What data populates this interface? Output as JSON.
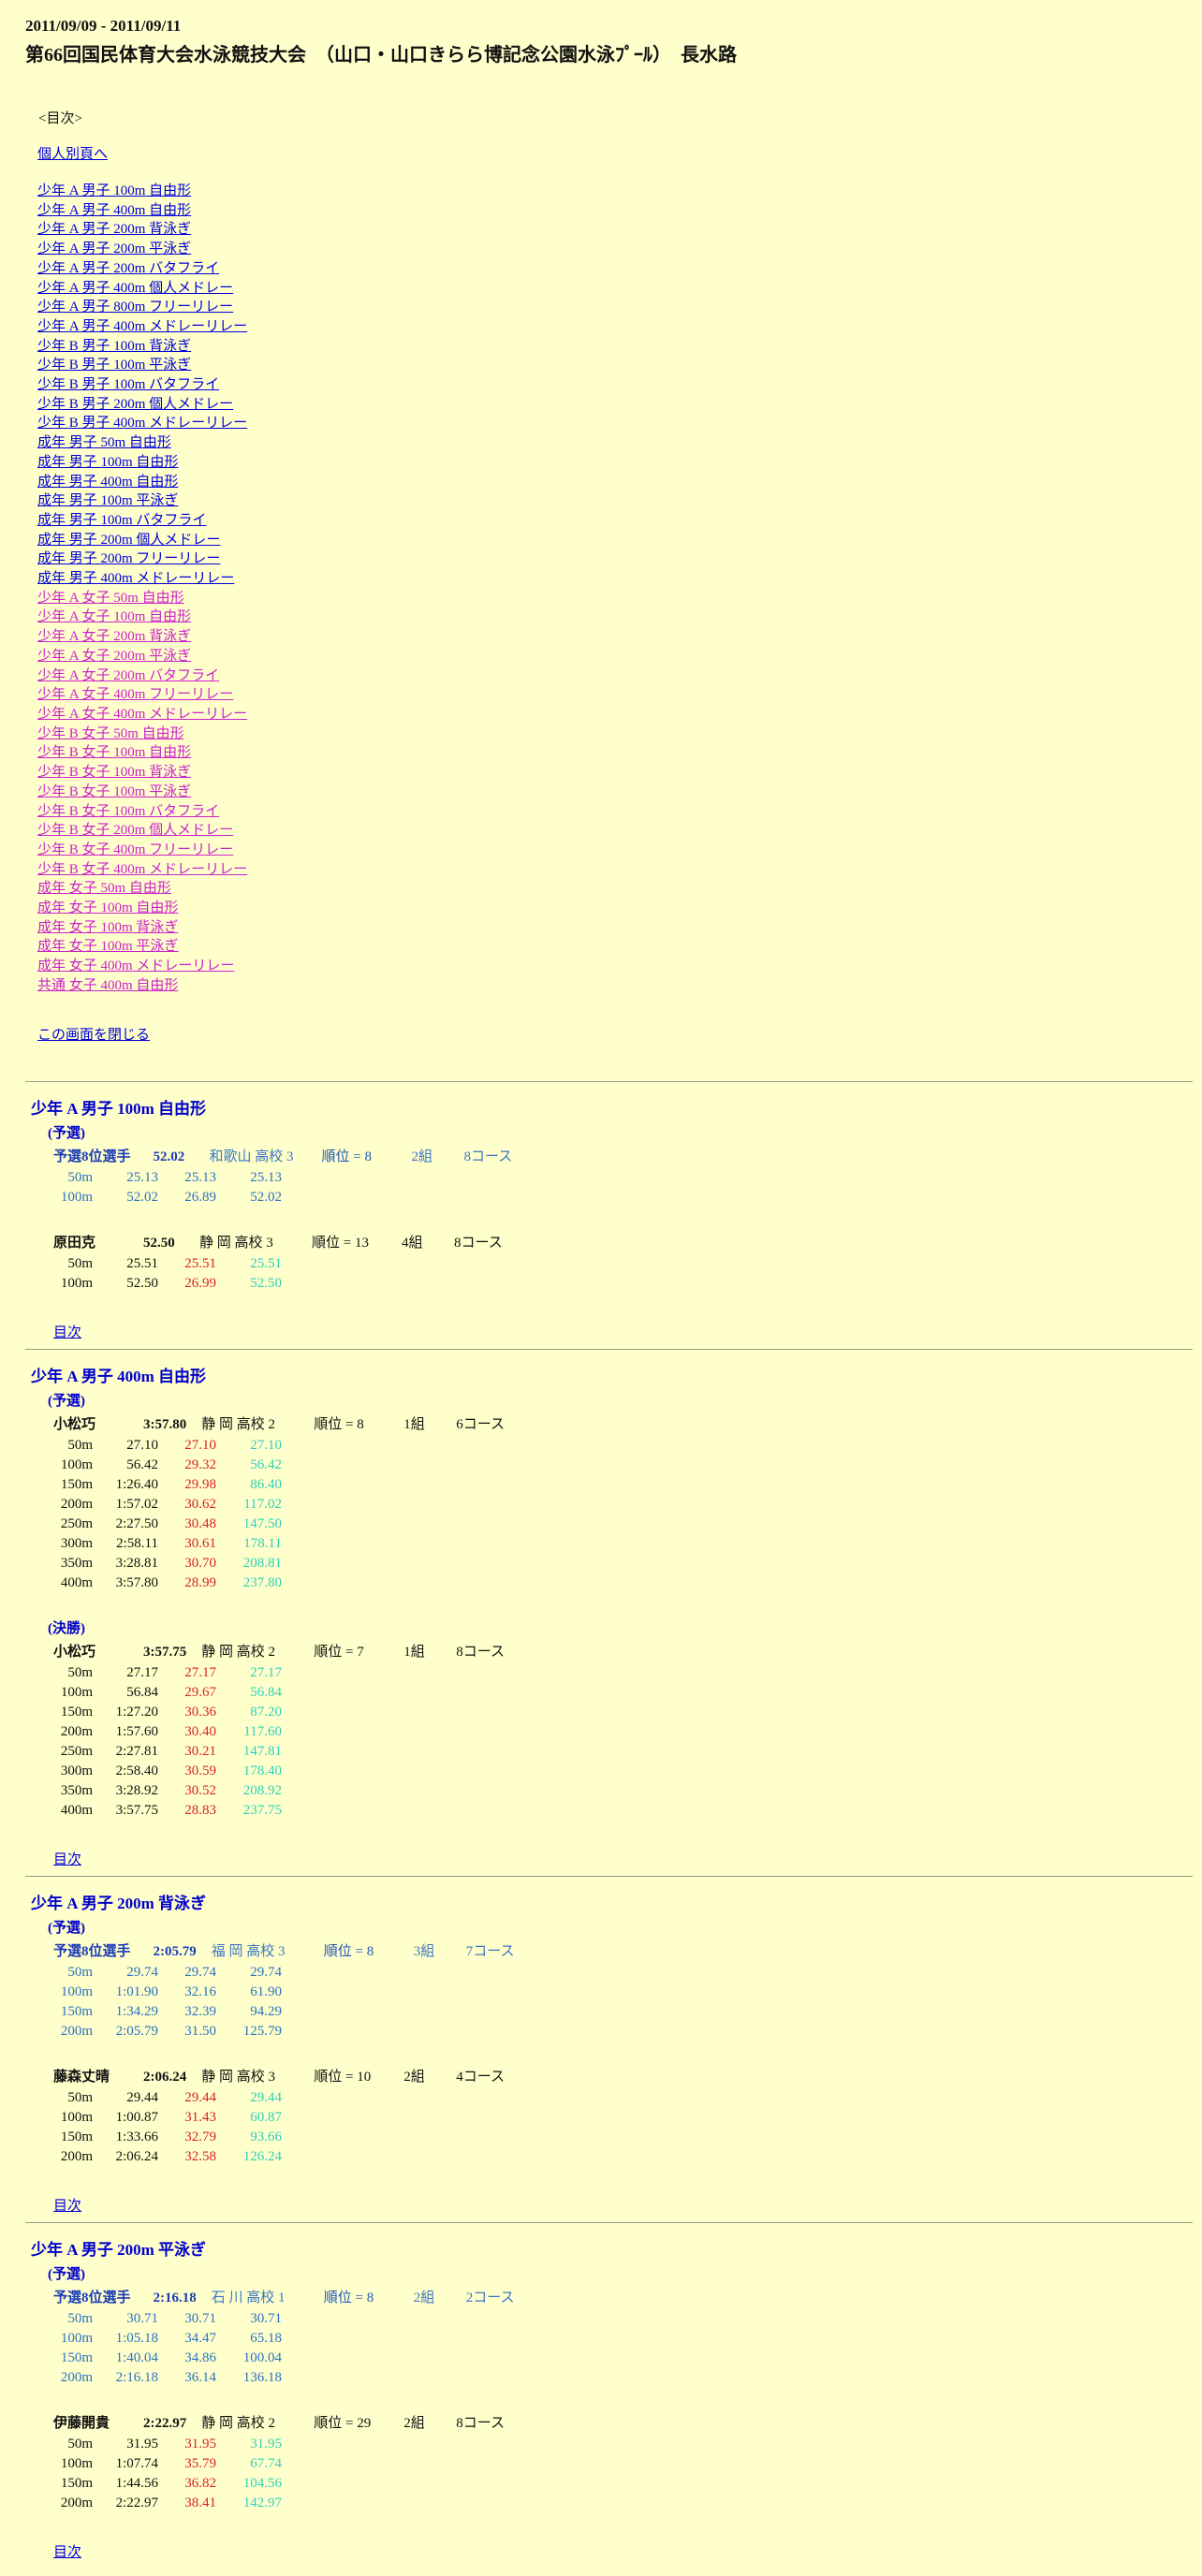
{
  "colors": {
    "background": "#ffffcc",
    "link_blue": "#0000dd",
    "link_visited_magenta": "#cc22cc",
    "section_header_blue": "#0000cc",
    "reference_blue": "#2a72c2",
    "split_red": "#dd2020",
    "cumulative_teal": "#2ed0ba"
  },
  "header": {
    "dates": "2011/09/09 - 2011/09/11",
    "title": "第66回国民体育大会水泳競技大会　（山口・山口きらら博記念公園水泳ﾌﾟｰﾙ）　長水路"
  },
  "toc": {
    "label": "<目次>",
    "top_link": "個人別頁へ",
    "close_link": "この画面を閉じる",
    "links": [
      {
        "label": "少年 A 男子 100m 自由形",
        "visited": false
      },
      {
        "label": "少年 A 男子 400m 自由形",
        "visited": false
      },
      {
        "label": "少年 A 男子 200m 背泳ぎ",
        "visited": false
      },
      {
        "label": "少年 A 男子 200m 平泳ぎ",
        "visited": false
      },
      {
        "label": "少年 A 男子 200m バタフライ",
        "visited": false
      },
      {
        "label": "少年 A 男子 400m 個人メドレー",
        "visited": false
      },
      {
        "label": "少年 A 男子 800m フリーリレー",
        "visited": false
      },
      {
        "label": "少年 A 男子 400m メドレーリレー",
        "visited": false
      },
      {
        "label": "少年 B 男子 100m 背泳ぎ",
        "visited": false
      },
      {
        "label": "少年 B 男子 100m 平泳ぎ",
        "visited": false
      },
      {
        "label": "少年 B 男子 100m バタフライ",
        "visited": false
      },
      {
        "label": "少年 B 男子 200m 個人メドレー",
        "visited": false
      },
      {
        "label": "少年 B 男子 400m メドレーリレー",
        "visited": false
      },
      {
        "label": "成年 男子 50m 自由形",
        "visited": false
      },
      {
        "label": "成年 男子 100m 自由形",
        "visited": false
      },
      {
        "label": "成年 男子 400m 自由形",
        "visited": false
      },
      {
        "label": "成年 男子 100m 平泳ぎ",
        "visited": false
      },
      {
        "label": "成年 男子 100m バタフライ",
        "visited": false
      },
      {
        "label": "成年 男子 200m 個人メドレー",
        "visited": false
      },
      {
        "label": "成年 男子 200m フリーリレー",
        "visited": false
      },
      {
        "label": "成年 男子 400m メドレーリレー",
        "visited": false
      },
      {
        "label": "少年 A 女子 50m 自由形",
        "visited": true
      },
      {
        "label": "少年 A 女子 100m 自由形",
        "visited": true
      },
      {
        "label": "少年 A 女子 200m 背泳ぎ",
        "visited": true
      },
      {
        "label": "少年 A 女子 200m 平泳ぎ",
        "visited": true
      },
      {
        "label": "少年 A 女子 200m バタフライ",
        "visited": true
      },
      {
        "label": "少年 A 女子 400m フリーリレー",
        "visited": true
      },
      {
        "label": "少年 A 女子 400m メドレーリレー",
        "visited": true
      },
      {
        "label": "少年 B 女子 50m 自由形",
        "visited": true
      },
      {
        "label": "少年 B 女子 100m 自由形",
        "visited": true
      },
      {
        "label": "少年 B 女子 100m 背泳ぎ",
        "visited": true
      },
      {
        "label": "少年 B 女子 100m 平泳ぎ",
        "visited": true
      },
      {
        "label": "少年 B 女子 100m バタフライ",
        "visited": true
      },
      {
        "label": "少年 B 女子 200m 個人メドレー",
        "visited": true
      },
      {
        "label": "少年 B 女子 400m フリーリレー",
        "visited": true
      },
      {
        "label": "少年 B 女子 400m メドレーリレー",
        "visited": true
      },
      {
        "label": "成年 女子 50m 自由形",
        "visited": true
      },
      {
        "label": "成年 女子 100m 自由形",
        "visited": true
      },
      {
        "label": "成年 女子 100m 背泳ぎ",
        "visited": true
      },
      {
        "label": "成年 女子 100m 平泳ぎ",
        "visited": true
      },
      {
        "label": "成年 女子 400m メドレーリレー",
        "visited": true
      },
      {
        "label": "共通 女子 400m 自由形",
        "visited": true
      }
    ]
  },
  "back_label": "目次",
  "sections": [
    {
      "title": "少年 A 男子 100m 自由形",
      "rounds": [
        {
          "label": "(予選)",
          "entries": [
            {
              "name": "予選8位選手",
              "time": "52.02",
              "team": "和歌山 高校 3",
              "rank": "順位 = 8",
              "heat": "2組",
              "lane": "8コース",
              "reference": true,
              "laps": [
                [
                  "50m",
                  "25.13",
                  "25.13",
                  "25.13"
                ],
                [
                  "100m",
                  "52.02",
                  "26.89",
                  "52.02"
                ]
              ]
            },
            {
              "name": "原田克",
              "time": "52.50",
              "team": "静 岡 高校 3",
              "rank": "順位 = 13",
              "heat": "4組",
              "lane": "8コース",
              "reference": false,
              "laps": [
                [
                  "50m",
                  "25.51",
                  "25.51",
                  "25.51"
                ],
                [
                  "100m",
                  "52.50",
                  "26.99",
                  "52.50"
                ]
              ]
            }
          ]
        }
      ]
    },
    {
      "title": "少年 A 男子 400m 自由形",
      "rounds": [
        {
          "label": "(予選)",
          "entries": [
            {
              "name": "小松巧",
              "time": "3:57.80",
              "team": "静 岡 高校 2",
              "rank": "順位 = 8",
              "heat": "1組",
              "lane": "6コース",
              "reference": false,
              "laps": [
                [
                  "50m",
                  "27.10",
                  "27.10",
                  "27.10"
                ],
                [
                  "100m",
                  "56.42",
                  "29.32",
                  "56.42"
                ],
                [
                  "150m",
                  "1:26.40",
                  "29.98",
                  "86.40"
                ],
                [
                  "200m",
                  "1:57.02",
                  "30.62",
                  "117.02"
                ],
                [
                  "250m",
                  "2:27.50",
                  "30.48",
                  "147.50"
                ],
                [
                  "300m",
                  "2:58.11",
                  "30.61",
                  "178.11"
                ],
                [
                  "350m",
                  "3:28.81",
                  "30.70",
                  "208.81"
                ],
                [
                  "400m",
                  "3:57.80",
                  "28.99",
                  "237.80"
                ]
              ]
            }
          ]
        },
        {
          "label": "(決勝)",
          "entries": [
            {
              "name": "小松巧",
              "time": "3:57.75",
              "team": "静 岡 高校 2",
              "rank": "順位 = 7",
              "heat": "1組",
              "lane": "8コース",
              "reference": false,
              "laps": [
                [
                  "50m",
                  "27.17",
                  "27.17",
                  "27.17"
                ],
                [
                  "100m",
                  "56.84",
                  "29.67",
                  "56.84"
                ],
                [
                  "150m",
                  "1:27.20",
                  "30.36",
                  "87.20"
                ],
                [
                  "200m",
                  "1:57.60",
                  "30.40",
                  "117.60"
                ],
                [
                  "250m",
                  "2:27.81",
                  "30.21",
                  "147.81"
                ],
                [
                  "300m",
                  "2:58.40",
                  "30.59",
                  "178.40"
                ],
                [
                  "350m",
                  "3:28.92",
                  "30.52",
                  "208.92"
                ],
                [
                  "400m",
                  "3:57.75",
                  "28.83",
                  "237.75"
                ]
              ]
            }
          ]
        }
      ]
    },
    {
      "title": "少年 A 男子 200m 背泳ぎ",
      "rounds": [
        {
          "label": "(予選)",
          "entries": [
            {
              "name": "予選8位選手",
              "time": "2:05.79",
              "team": "福 岡 高校 3",
              "rank": "順位 = 8",
              "heat": "3組",
              "lane": "7コース",
              "reference": true,
              "laps": [
                [
                  "50m",
                  "29.74",
                  "29.74",
                  "29.74"
                ],
                [
                  "100m",
                  "1:01.90",
                  "32.16",
                  "61.90"
                ],
                [
                  "150m",
                  "1:34.29",
                  "32.39",
                  "94.29"
                ],
                [
                  "200m",
                  "2:05.79",
                  "31.50",
                  "125.79"
                ]
              ]
            },
            {
              "name": "藤森丈晴",
              "time": "2:06.24",
              "team": "静 岡 高校 3",
              "rank": "順位 = 10",
              "heat": "2組",
              "lane": "4コース",
              "reference": false,
              "laps": [
                [
                  "50m",
                  "29.44",
                  "29.44",
                  "29.44"
                ],
                [
                  "100m",
                  "1:00.87",
                  "31.43",
                  "60.87"
                ],
                [
                  "150m",
                  "1:33.66",
                  "32.79",
                  "93.66"
                ],
                [
                  "200m",
                  "2:06.24",
                  "32.58",
                  "126.24"
                ]
              ]
            }
          ]
        }
      ]
    },
    {
      "title": "少年 A 男子 200m 平泳ぎ",
      "rounds": [
        {
          "label": "(予選)",
          "entries": [
            {
              "name": "予選8位選手",
              "time": "2:16.18",
              "team": "石 川 高校 1",
              "rank": "順位 = 8",
              "heat": "2組",
              "lane": "2コース",
              "reference": true,
              "laps": [
                [
                  "50m",
                  "30.71",
                  "30.71",
                  "30.71"
                ],
                [
                  "100m",
                  "1:05.18",
                  "34.47",
                  "65.18"
                ],
                [
                  "150m",
                  "1:40.04",
                  "34.86",
                  "100.04"
                ],
                [
                  "200m",
                  "2:16.18",
                  "36.14",
                  "136.18"
                ]
              ]
            },
            {
              "name": "伊藤開貴",
              "time": "2:22.97",
              "team": "静 岡 高校 2",
              "rank": "順位 = 29",
              "heat": "2組",
              "lane": "8コース",
              "reference": false,
              "laps": [
                [
                  "50m",
                  "31.95",
                  "31.95",
                  "31.95"
                ],
                [
                  "100m",
                  "1:07.74",
                  "35.79",
                  "67.74"
                ],
                [
                  "150m",
                  "1:44.56",
                  "36.82",
                  "104.56"
                ],
                [
                  "200m",
                  "2:22.97",
                  "38.41",
                  "142.97"
                ]
              ]
            }
          ]
        }
      ]
    }
  ]
}
